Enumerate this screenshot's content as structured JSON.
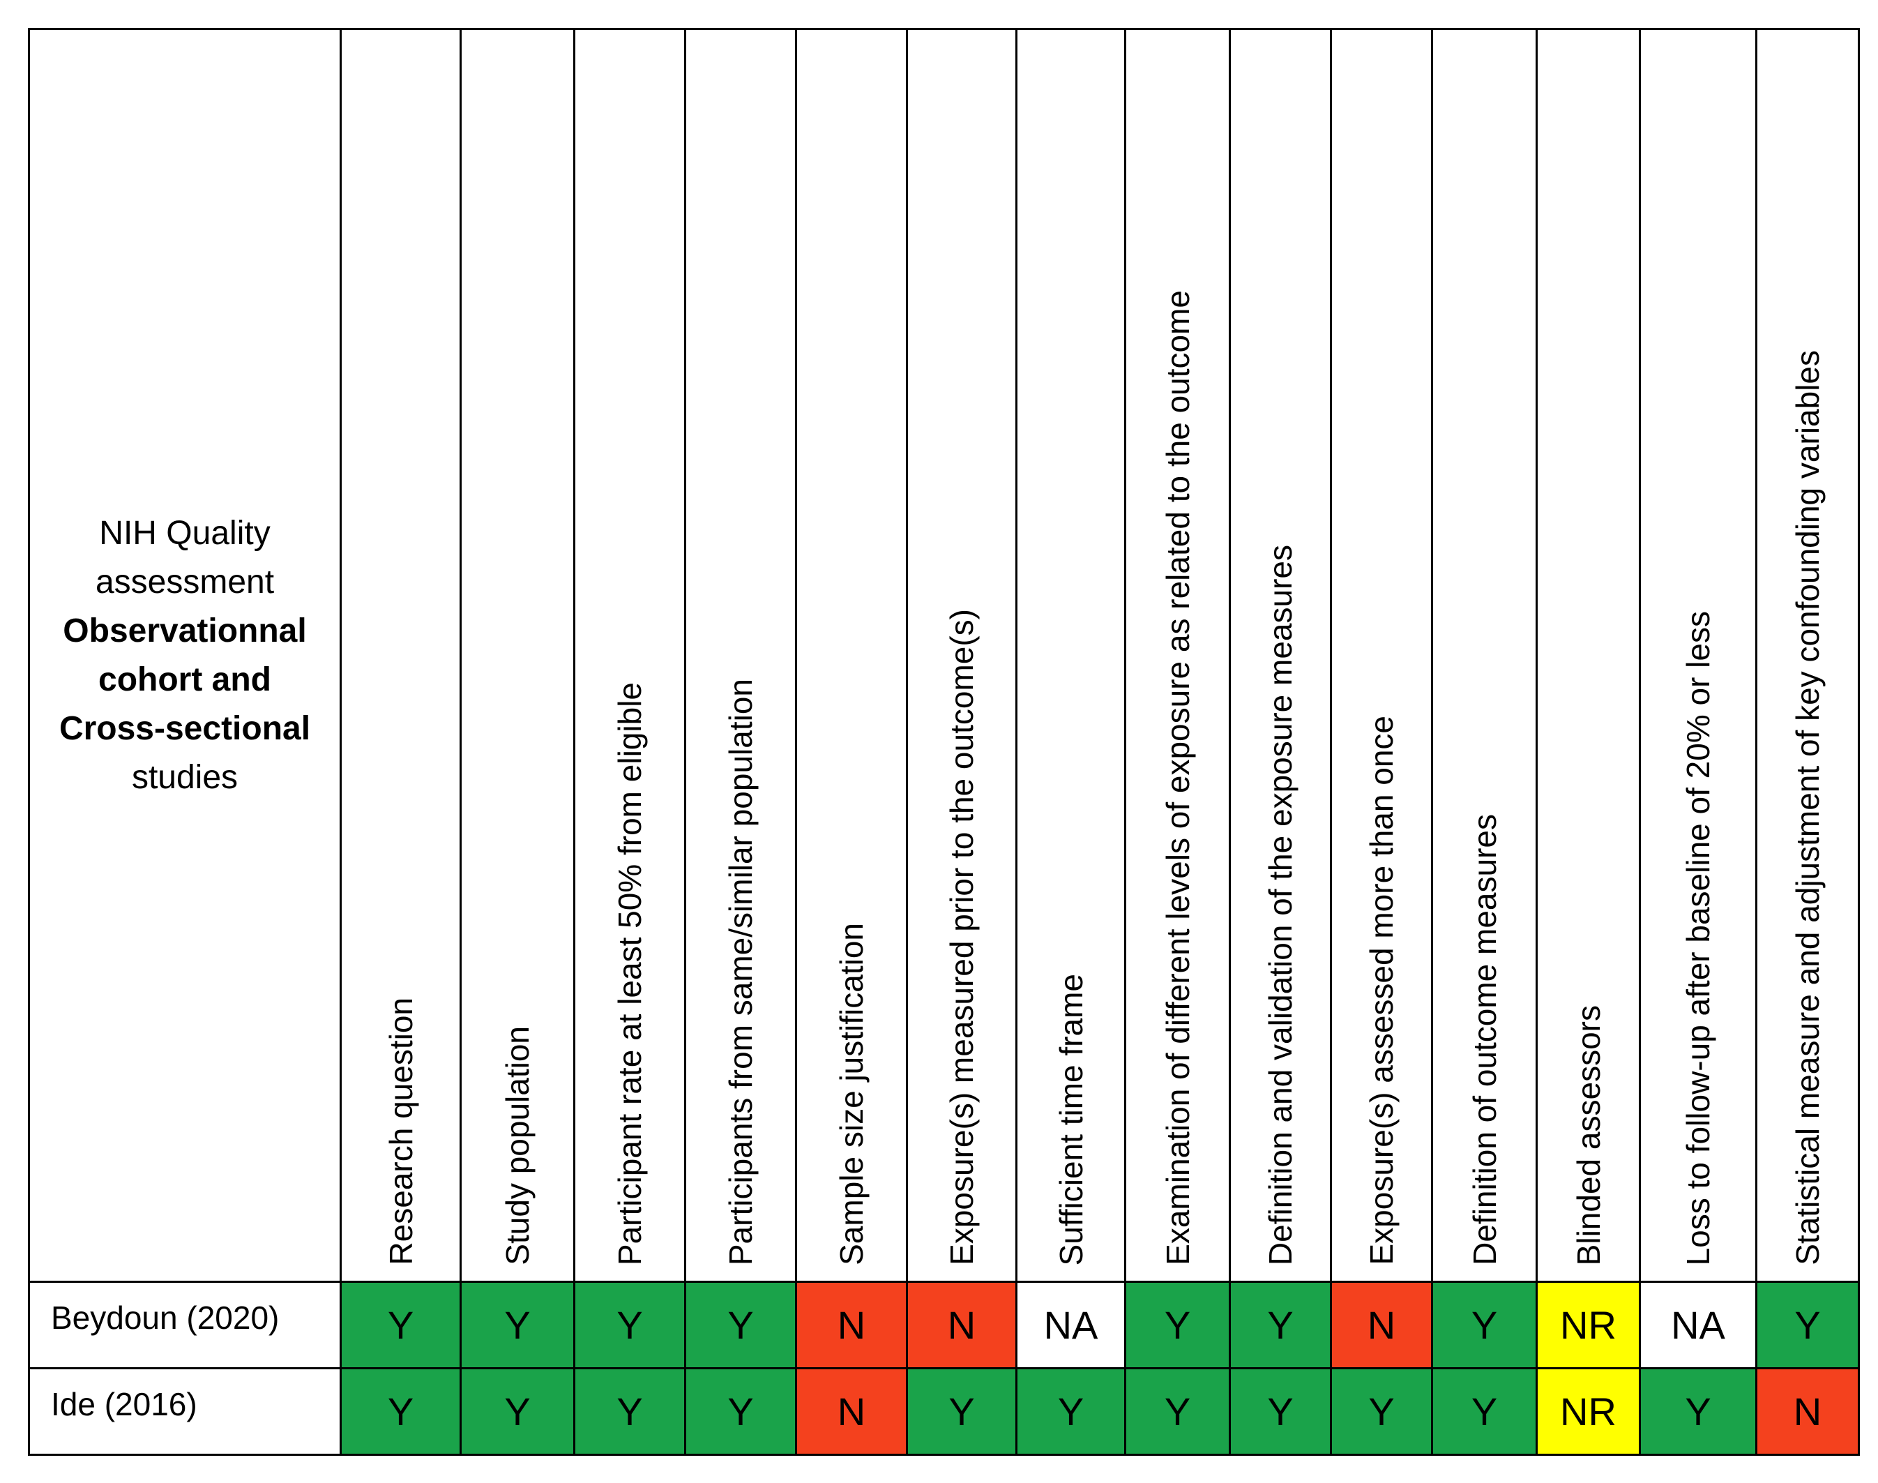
{
  "title": {
    "line1": "NIH Quality",
    "line2": "assessment",
    "line3": "Observationnal",
    "line4": "cohort and",
    "line5": "Cross-sectional",
    "line6": "studies"
  },
  "columns": [
    "Research question",
    "Study population",
    "Participant rate at least  50% from eligible",
    "Participants from same/similar population",
    "Sample size justification",
    "Exposure(s) measured prior to the outcome(s)",
    "Sufficient time frame",
    "Examination of different levels of exposure as related to the outcome",
    "Definition and validation of the exposure measures",
    "Exposure(s) assessed more than once",
    "Definition of outcome measures",
    "Blinded assessors",
    "Loss to follow-up after baseline of 20% or less",
    "Statistical measure and adjustment of key confounding variables"
  ],
  "rows": [
    {
      "study": "Beydoun (2020)",
      "ratings": [
        "Y",
        "Y",
        "Y",
        "Y",
        "N",
        "N",
        "NA",
        "Y",
        "Y",
        "N",
        "Y",
        "NR",
        "NA",
        "Y"
      ]
    },
    {
      "study": "Ide (2016)",
      "ratings": [
        "Y",
        "Y",
        "Y",
        "Y",
        "N",
        "Y",
        "Y",
        "Y",
        "Y",
        "Y",
        "Y",
        "NR",
        "Y",
        "N"
      ]
    }
  ],
  "rating_colors": {
    "Y": "#1aa34a",
    "N": "#f4411e",
    "NR": "#ffff00",
    "NA": "#ffffff"
  }
}
